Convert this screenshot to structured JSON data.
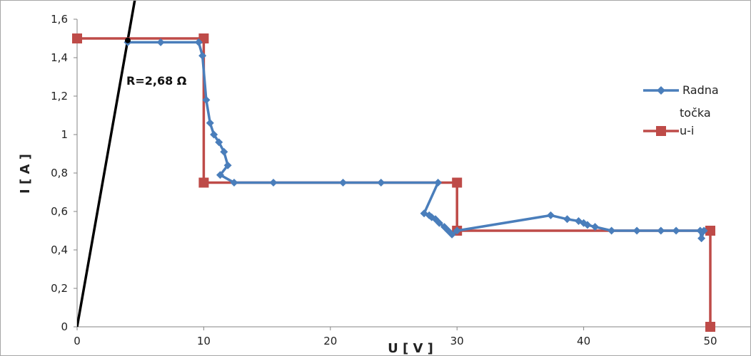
{
  "chart_data": {
    "type": "line",
    "title": "",
    "xlabel": "U [ V ]",
    "ylabel": "I [ A ]",
    "xlim": [
      0,
      50
    ],
    "ylim": [
      0,
      1.6
    ],
    "x_ticks": [
      "0",
      "10",
      "20",
      "30",
      "40",
      "50"
    ],
    "y_ticks": [
      "0",
      "0,2",
      "0,4",
      "0,6",
      "0,8",
      "1",
      "1,2",
      "1,4",
      "1,6"
    ],
    "grid": false,
    "legend_position": "right",
    "series": [
      {
        "name": "Radna točka",
        "color": "#4a7ebb",
        "marker": "diamond",
        "x": [
          4,
          6.6,
          9.6,
          9.9,
          10.2,
          10.5,
          10.8,
          11.2,
          11.6,
          11.9,
          11.3,
          12.4,
          15.5,
          21,
          24,
          28.5,
          27.4,
          27.8,
          28,
          28.3,
          28.6,
          29,
          29.3,
          29.6,
          30,
          37.4,
          38.7,
          39.6,
          40,
          40.3,
          40.9,
          42.2,
          44.2,
          46.1,
          47.3,
          49.2,
          49.3,
          49.5
        ],
        "y": [
          1.48,
          1.48,
          1.48,
          1.41,
          1.18,
          1.06,
          1.0,
          0.96,
          0.91,
          0.84,
          0.79,
          0.75,
          0.75,
          0.75,
          0.75,
          0.75,
          0.59,
          0.58,
          0.57,
          0.56,
          0.54,
          0.52,
          0.5,
          0.48,
          0.5,
          0.58,
          0.56,
          0.55,
          0.54,
          0.53,
          0.52,
          0.5,
          0.5,
          0.5,
          0.5,
          0.5,
          0.46,
          0.5
        ]
      },
      {
        "name": "u-i",
        "color": "#be4b48",
        "marker": "square",
        "x": [
          0,
          10,
          10,
          30,
          30,
          50,
          50
        ],
        "y": [
          1.5,
          1.5,
          0.75,
          0.75,
          0.5,
          0.5,
          0
        ]
      }
    ],
    "line_annotation": {
      "label": "R=2,68 Ω",
      "x": [
        0,
        4.29
      ],
      "y": [
        0,
        1.6
      ],
      "color": "#000000"
    }
  }
}
